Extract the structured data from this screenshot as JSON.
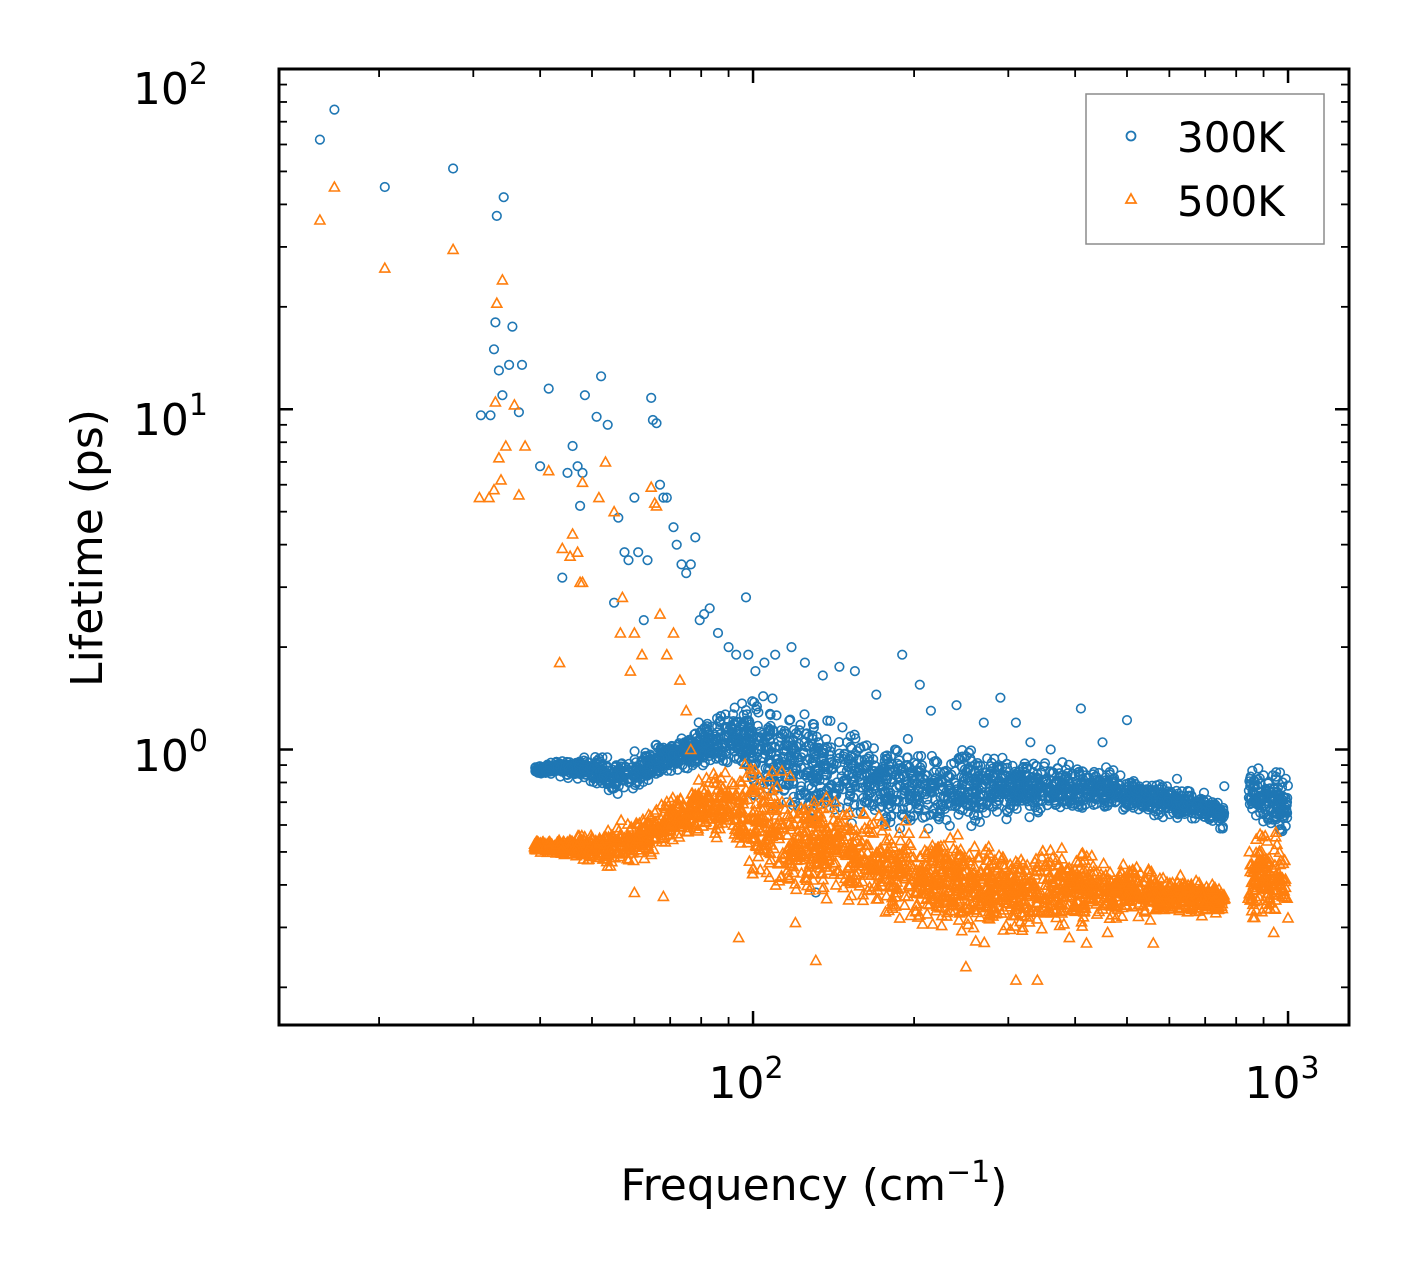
{
  "chart_data": {
    "type": "scatter",
    "title": "",
    "xlabel": "Frequency (cm",
    "xlabel_sup": "−1",
    "xlabel_end": ")",
    "ylabel": "Lifetime (ps)",
    "xscale": "log",
    "yscale": "log",
    "xlim": [
      13,
      1300
    ],
    "ylim": [
      0.155,
      100
    ],
    "x_tick_labels": [
      {
        "base": "10",
        "exp": "2",
        "value": 100
      },
      {
        "base": "10",
        "exp": "3",
        "value": 1000
      }
    ],
    "y_tick_labels": [
      {
        "base": "10",
        "exp": "0",
        "value": 1
      },
      {
        "base": "10",
        "exp": "1",
        "value": 10
      },
      {
        "base": "10",
        "exp": "2",
        "value": 100
      }
    ],
    "legend": {
      "position": "top-right",
      "entries": [
        "300K",
        "500K"
      ]
    },
    "series": [
      {
        "name": "300K",
        "marker": "circle",
        "color": "#1f77b4",
        "points": [
          [
            15.5,
            62
          ],
          [
            16.5,
            76
          ],
          [
            20.5,
            45
          ],
          [
            27.5,
            51
          ],
          [
            33.2,
            37
          ],
          [
            34.2,
            42
          ],
          [
            31.0,
            9.6
          ],
          [
            32.3,
            9.6
          ],
          [
            32.8,
            15
          ],
          [
            33.0,
            18
          ],
          [
            33.5,
            13
          ],
          [
            34.0,
            11
          ],
          [
            35.0,
            13.5
          ],
          [
            35.5,
            17.5
          ],
          [
            37.0,
            13.5
          ],
          [
            36.5,
            9.8
          ],
          [
            40.0,
            6.8
          ],
          [
            41.5,
            11.5
          ],
          [
            45.0,
            6.5
          ],
          [
            46.0,
            7.8
          ],
          [
            47.0,
            6.8
          ],
          [
            48.0,
            6.5
          ],
          [
            48.5,
            11
          ],
          [
            47.5,
            5.2
          ],
          [
            44.0,
            3.2
          ],
          [
            52.0,
            12.5
          ],
          [
            51.0,
            9.5
          ],
          [
            53.5,
            9.0
          ],
          [
            56.0,
            4.8
          ],
          [
            57.5,
            3.8
          ],
          [
            55.0,
            2.7
          ],
          [
            58.5,
            3.6
          ],
          [
            60.0,
            5.5
          ],
          [
            61.0,
            3.8
          ],
          [
            62.5,
            2.4
          ],
          [
            63.5,
            3.6
          ],
          [
            64.5,
            10.8
          ],
          [
            65.0,
            9.3
          ],
          [
            66.0,
            9.1
          ],
          [
            67.0,
            6.0
          ],
          [
            68.0,
            5.5
          ],
          [
            69.0,
            5.5
          ],
          [
            71.0,
            4.5
          ],
          [
            72.0,
            4.0
          ],
          [
            73.5,
            3.5
          ],
          [
            75.0,
            3.3
          ],
          [
            76.5,
            3.5
          ],
          [
            78.0,
            4.2
          ],
          [
            79.5,
            2.4
          ],
          [
            81.0,
            2.5
          ],
          [
            83.0,
            2.6
          ],
          [
            86.0,
            2.2
          ],
          [
            90.0,
            2.0
          ],
          [
            93.0,
            1.9
          ],
          [
            97.0,
            2.8
          ],
          [
            98.0,
            1.9
          ],
          [
            101.0,
            1.7
          ],
          [
            105.0,
            1.8
          ],
          [
            110.0,
            1.9
          ],
          [
            118.0,
            2.0
          ],
          [
            125.0,
            1.8
          ],
          [
            135.0,
            1.65
          ],
          [
            145.0,
            1.75
          ],
          [
            155.0,
            1.7
          ],
          [
            170.0,
            1.45
          ],
          [
            190.0,
            1.9
          ],
          [
            205.0,
            1.55
          ],
          [
            215.0,
            1.3
          ],
          [
            240.0,
            1.35
          ],
          [
            270.0,
            1.2
          ],
          [
            290.0,
            1.42
          ],
          [
            310.0,
            1.2
          ],
          [
            330.0,
            1.05
          ],
          [
            360.0,
            1.0
          ],
          [
            410.0,
            1.32
          ],
          [
            450.0,
            1.05
          ],
          [
            500.0,
            1.22
          ],
          [
            620.0,
            0.82
          ],
          [
            760.0,
            0.78
          ],
          [
            880.0,
            0.88
          ],
          [
            930.0,
            0.75
          ],
          [
            990.0,
            0.82
          ],
          [
            131.0,
            0.38
          ]
        ],
        "band": {
          "lower_envelope": [
            [
              39,
              0.85
            ],
            [
              45,
              0.82
            ],
            [
              50,
              0.79
            ],
            [
              55,
              0.72
            ],
            [
              60,
              0.72
            ],
            [
              70,
              0.82
            ],
            [
              80,
              0.85
            ],
            [
              90,
              0.82
            ],
            [
              100,
              0.72
            ],
            [
              115,
              0.58
            ],
            [
              130,
              0.52
            ],
            [
              150,
              0.56
            ],
            [
              180,
              0.52
            ],
            [
              220,
              0.55
            ],
            [
              260,
              0.56
            ],
            [
              300,
              0.6
            ],
            [
              360,
              0.62
            ],
            [
              420,
              0.63
            ],
            [
              500,
              0.64
            ],
            [
              600,
              0.62
            ],
            [
              700,
              0.6
            ],
            [
              760,
              0.56
            ],
            [
              845,
              0.6
            ],
            [
              900,
              0.56
            ],
            [
              1000,
              0.54
            ]
          ],
          "upper_envelope": [
            [
              39,
              0.9
            ],
            [
              45,
              0.95
            ],
            [
              50,
              0.96
            ],
            [
              55,
              0.97
            ],
            [
              60,
              1.0
            ],
            [
              70,
              1.1
            ],
            [
              80,
              1.25
            ],
            [
              90,
              1.45
            ],
            [
              100,
              1.55
            ],
            [
              115,
              1.55
            ],
            [
              130,
              1.45
            ],
            [
              150,
              1.25
            ],
            [
              180,
              1.15
            ],
            [
              220,
              1.08
            ],
            [
              260,
              1.05
            ],
            [
              300,
              1.0
            ],
            [
              360,
              0.96
            ],
            [
              420,
              0.95
            ],
            [
              500,
              0.85
            ],
            [
              600,
              0.8
            ],
            [
              700,
              0.75
            ],
            [
              760,
              0.72
            ],
            [
              845,
              0.9
            ],
            [
              900,
              0.92
            ],
            [
              1000,
              0.85
            ]
          ],
          "gaps": [
            [
              762,
              842
            ]
          ]
        }
      },
      {
        "name": "500K",
        "marker": "triangle",
        "color": "#ff7f0e",
        "points": [
          [
            15.5,
            36
          ],
          [
            16.5,
            45
          ],
          [
            20.5,
            26
          ],
          [
            27.5,
            29.5
          ],
          [
            33.0,
            10.5
          ],
          [
            33.2,
            20.5
          ],
          [
            34.0,
            24
          ],
          [
            33.5,
            7.2
          ],
          [
            34.5,
            7.8
          ],
          [
            33.8,
            6.2
          ],
          [
            32.8,
            5.8
          ],
          [
            35.8,
            10.3
          ],
          [
            36.5,
            5.6
          ],
          [
            37.5,
            7.8
          ],
          [
            41.5,
            6.6
          ],
          [
            30.8,
            5.5
          ],
          [
            32.1,
            5.5
          ],
          [
            44.0,
            3.9
          ],
          [
            46.0,
            4.3
          ],
          [
            47.0,
            3.8
          ],
          [
            48.0,
            6.1
          ],
          [
            47.5,
            3.1
          ],
          [
            48.0,
            3.1
          ],
          [
            45.5,
            3.7
          ],
          [
            43.5,
            1.8
          ],
          [
            51.5,
            5.5
          ],
          [
            53.0,
            7.0
          ],
          [
            55.0,
            5.0
          ],
          [
            57.0,
            2.8
          ],
          [
            56.5,
            2.2
          ],
          [
            59.0,
            1.7
          ],
          [
            60.0,
            2.2
          ],
          [
            62.0,
            1.9
          ],
          [
            64.5,
            5.9
          ],
          [
            65.5,
            5.3
          ],
          [
            66.0,
            5.2
          ],
          [
            67.0,
            2.5
          ],
          [
            69.0,
            1.9
          ],
          [
            71.0,
            2.2
          ],
          [
            73.0,
            1.6
          ],
          [
            75.0,
            1.3
          ],
          [
            76.5,
            1.0
          ],
          [
            94.0,
            0.28
          ],
          [
            120.0,
            0.31
          ],
          [
            131.0,
            0.24
          ],
          [
            117.0,
            0.42
          ],
          [
            60.0,
            0.38
          ],
          [
            68.0,
            0.37
          ],
          [
            250.0,
            0.23
          ],
          [
            310.0,
            0.21
          ],
          [
            340.0,
            0.21
          ],
          [
            390.0,
            0.28
          ],
          [
            420.0,
            0.27
          ],
          [
            460.0,
            0.29
          ],
          [
            560.0,
            0.27
          ],
          [
            600.0,
            0.34
          ],
          [
            720.0,
            0.34
          ],
          [
            940.0,
            0.29
          ],
          [
            1000.0,
            0.32
          ]
        ],
        "band": {
          "lower_envelope": [
            [
              39,
              0.5
            ],
            [
              45,
              0.48
            ],
            [
              50,
              0.45
            ],
            [
              55,
              0.44
            ],
            [
              60,
              0.45
            ],
            [
              70,
              0.5
            ],
            [
              80,
              0.55
            ],
            [
              90,
              0.5
            ],
            [
              100,
              0.38
            ],
            [
              115,
              0.34
            ],
            [
              130,
              0.33
            ],
            [
              150,
              0.32
            ],
            [
              180,
              0.3
            ],
            [
              220,
              0.27
            ],
            [
              260,
              0.26
            ],
            [
              300,
              0.27
            ],
            [
              360,
              0.28
            ],
            [
              420,
              0.29
            ],
            [
              500,
              0.3
            ],
            [
              600,
              0.31
            ],
            [
              700,
              0.32
            ],
            [
              760,
              0.32
            ],
            [
              845,
              0.3
            ],
            [
              900,
              0.3
            ],
            [
              1000,
              0.3
            ]
          ],
          "upper_envelope": [
            [
              39,
              0.54
            ],
            [
              45,
              0.56
            ],
            [
              50,
              0.58
            ],
            [
              55,
              0.62
            ],
            [
              60,
              0.65
            ],
            [
              70,
              0.75
            ],
            [
              80,
              0.85
            ],
            [
              90,
              0.95
            ],
            [
              100,
              0.98
            ],
            [
              115,
              0.95
            ],
            [
              130,
              0.85
            ],
            [
              150,
              0.75
            ],
            [
              180,
              0.66
            ],
            [
              220,
              0.62
            ],
            [
              260,
              0.58
            ],
            [
              300,
              0.56
            ],
            [
              360,
              0.55
            ],
            [
              420,
              0.52
            ],
            [
              500,
              0.5
            ],
            [
              600,
              0.45
            ],
            [
              700,
              0.42
            ],
            [
              760,
              0.4
            ],
            [
              845,
              0.55
            ],
            [
              900,
              0.62
            ],
            [
              1000,
              0.6
            ]
          ],
          "gaps": [
            [
              762,
              842
            ]
          ]
        }
      }
    ]
  }
}
